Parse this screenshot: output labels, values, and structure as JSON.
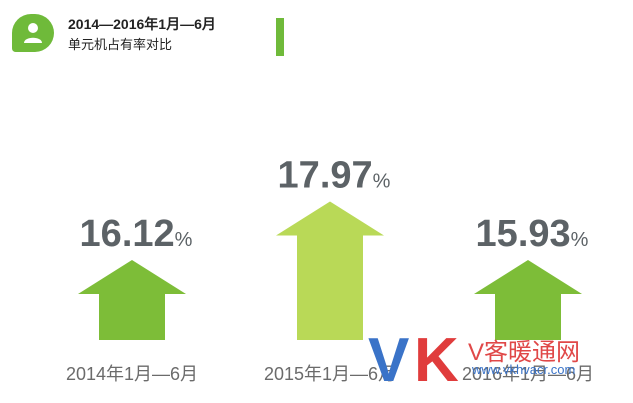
{
  "header": {
    "icon": "user-icon",
    "title_line1": "2014—2016年1月—6月",
    "title_line2": "单元机占有率对比"
  },
  "chart_data": {
    "type": "bar",
    "title": "2014—2016年1月—6月 单元机占有率对比",
    "categories": [
      "2014年1月—6月",
      "2015年1月—6月",
      "2016年1月—6月"
    ],
    "values": [
      16.12,
      17.97,
      15.93
    ],
    "value_labels": [
      "16.12",
      "17.97",
      "15.93"
    ],
    "unit": "%",
    "colors": [
      "#7dbd38",
      "#b9d957",
      "#7dbd38"
    ],
    "ylim": [
      14,
      18.5
    ],
    "grid": false
  },
  "watermark": {
    "brand_v": "V",
    "brand_k": "K",
    "name": "V客暖通网",
    "url": "www.vkhvacr.com"
  },
  "colors": {
    "accent": "#6fba3a",
    "label": "#5c6266",
    "category": "#6b6b6b"
  }
}
